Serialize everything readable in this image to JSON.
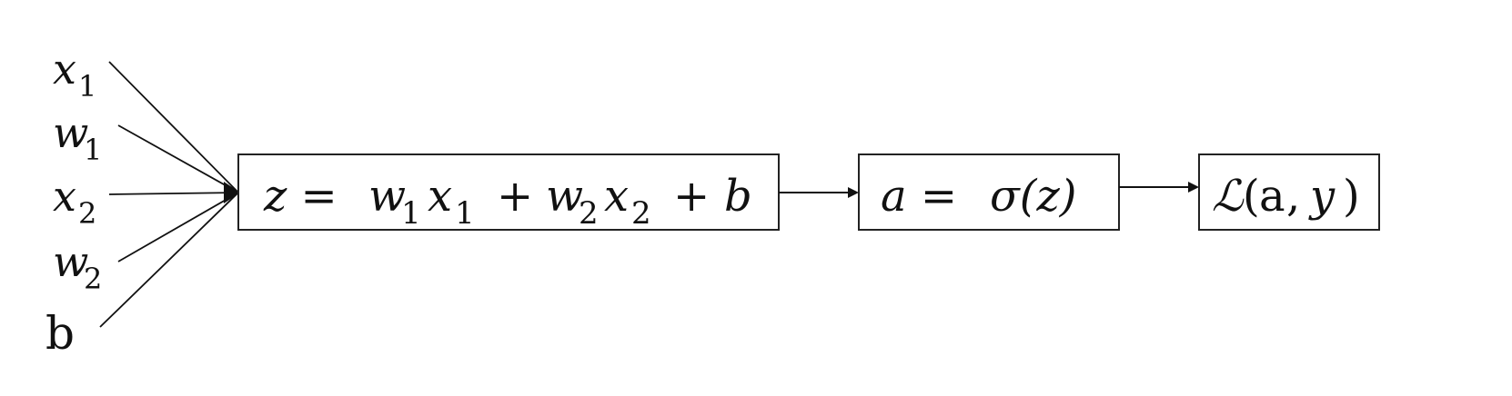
{
  "inputs": {
    "x1": {
      "base": "x",
      "sub": "1"
    },
    "w1": {
      "base": "w",
      "sub": "1"
    },
    "x2": {
      "base": "x",
      "sub": "2"
    },
    "w2": {
      "base": "w",
      "sub": "2"
    },
    "b": {
      "base": "b"
    }
  },
  "nodes": {
    "z": {
      "lhs": "z =",
      "t1_base": "w",
      "t1_sub": "1",
      "t2_base": "x",
      "t2_sub": "1",
      "plus1": "+",
      "t3_base": "w",
      "t3_sub": "2",
      "t4_base": "x",
      "t4_sub": "2",
      "plus2": "+",
      "t5": "b"
    },
    "a": {
      "lhs": "a =",
      "rhs": "σ(z)"
    },
    "loss": {
      "symbol": "ℒ",
      "open": "(",
      "arg1": "a",
      "comma": ",",
      "arg2": "y",
      "close": ")"
    }
  },
  "colors": {
    "stroke": "#111111",
    "background": "#ffffff"
  }
}
